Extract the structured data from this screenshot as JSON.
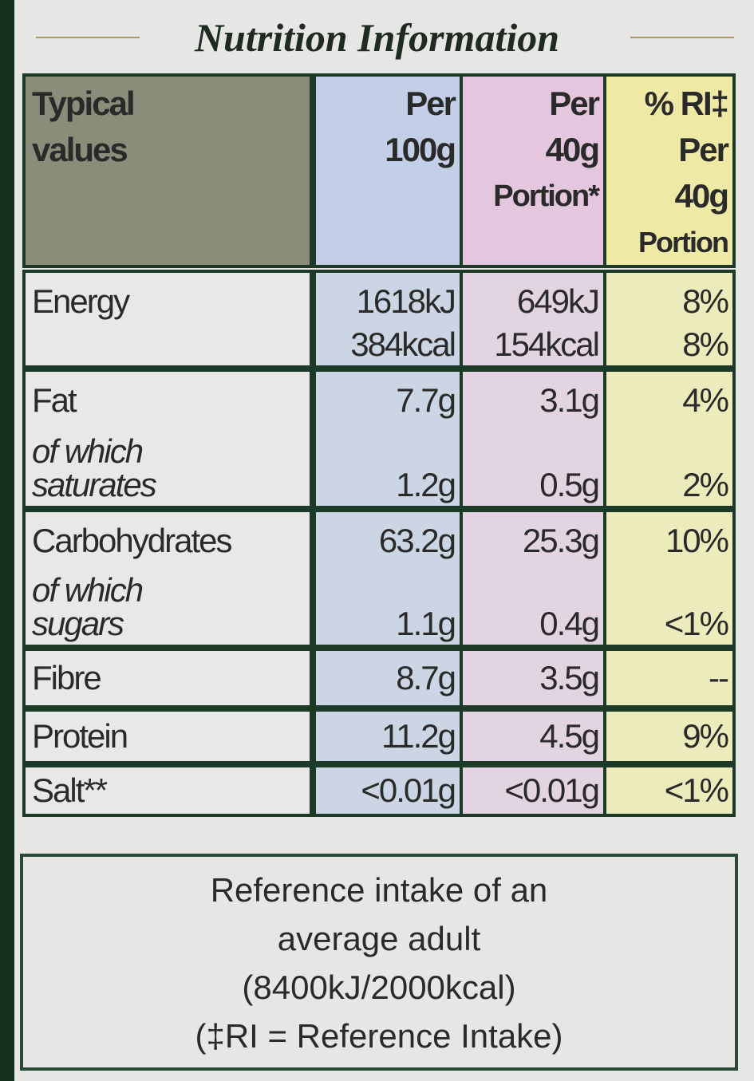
{
  "title": "Nutrition Information",
  "table": {
    "header": {
      "label": [
        "Typical",
        "values"
      ],
      "per_100g": [
        "Per",
        "100g"
      ],
      "per_40g": [
        "Per",
        "40g",
        "Portion*"
      ],
      "ri": [
        "% RI‡",
        "Per",
        "40g",
        "Portion"
      ]
    },
    "groups": [
      {
        "label": "Energy",
        "per_100g": [
          "1618kJ",
          "384kcal"
        ],
        "per_40g": [
          "649kJ",
          "154kcal"
        ],
        "ri": [
          "8%",
          "8%"
        ]
      },
      {
        "label": "Fat",
        "sublabel": [
          "of which",
          "saturates"
        ],
        "per_100g": [
          "7.7g",
          "1.2g"
        ],
        "per_40g": [
          "3.1g",
          "0.5g"
        ],
        "ri": [
          "4%",
          "2%"
        ]
      },
      {
        "label": "Carbohydrates",
        "sublabel": [
          "of which",
          "sugars"
        ],
        "per_100g": [
          "63.2g",
          "1.1g"
        ],
        "per_40g": [
          "25.3g",
          "0.4g"
        ],
        "ri": [
          "10%",
          "<1%"
        ]
      },
      {
        "label": "Fibre",
        "per_100g": [
          "8.7g"
        ],
        "per_40g": [
          "3.5g"
        ],
        "ri": [
          "--"
        ]
      },
      {
        "label": "Protein",
        "per_100g": [
          "11.2g"
        ],
        "per_40g": [
          "4.5g"
        ],
        "ri": [
          "9%"
        ]
      },
      {
        "label": "Salt**",
        "per_100g": [
          "<0.01g"
        ],
        "per_40g": [
          "<0.01g"
        ],
        "ri": [
          "<1%"
        ]
      }
    ]
  },
  "reference": [
    "Reference intake of an",
    "average adult",
    "(8400kJ/2000kcal)",
    "(‡RI = Reference Intake)"
  ]
}
